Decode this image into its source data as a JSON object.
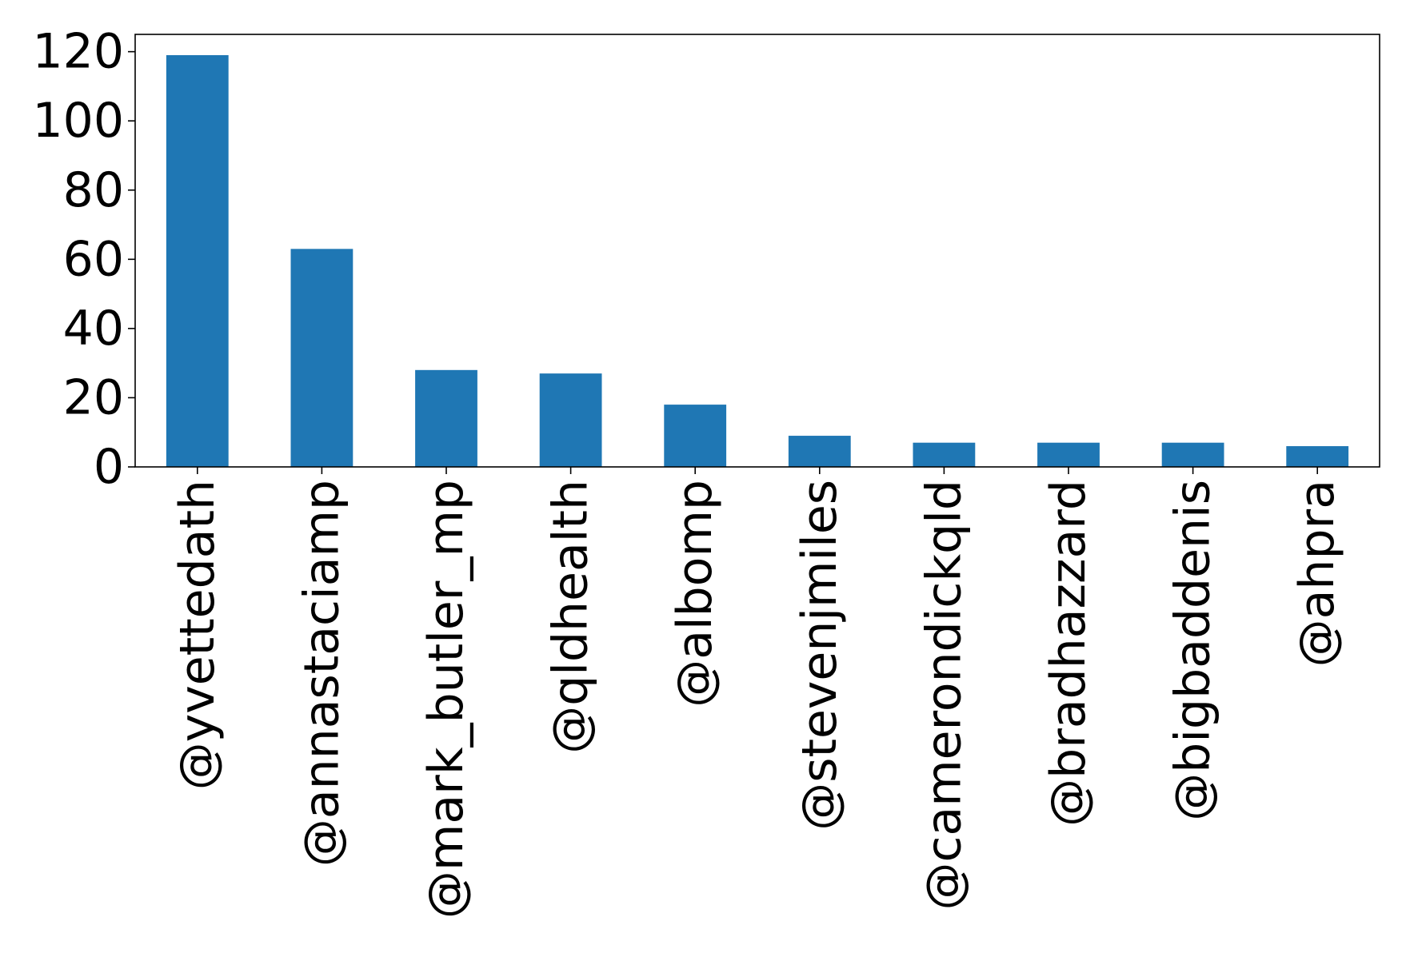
{
  "chart_data": {
    "type": "bar",
    "categories": [
      "@yvettedath",
      "@annastaciamp",
      "@mark_butler_mp",
      "@qldhealth",
      "@albomp",
      "@stevenjmiles",
      "@camerondickqld",
      "@bradhazzard",
      "@bigbaddenis",
      "@ahpra"
    ],
    "values": [
      119,
      63,
      28,
      27,
      18,
      9,
      7,
      7,
      7,
      6
    ],
    "title": "",
    "xlabel": "",
    "ylabel": "",
    "ylim": [
      0,
      125
    ],
    "yticks": [
      "0",
      "20",
      "40",
      "60",
      "80",
      "100",
      "120"
    ],
    "bar_color": "#1f77b4",
    "grid": false,
    "legend": "none"
  }
}
